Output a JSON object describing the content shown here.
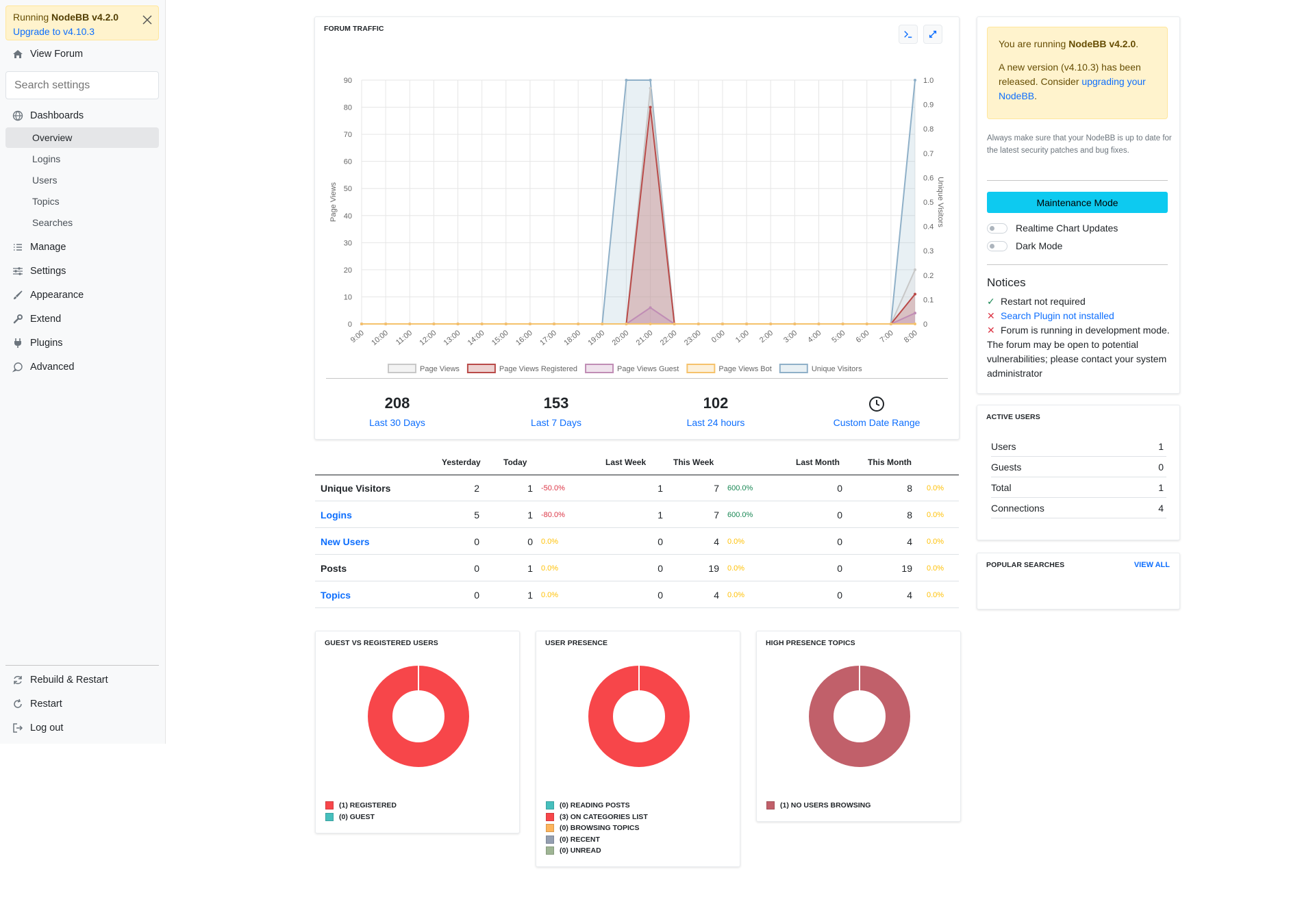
{
  "sidebar": {
    "upgrade_alert": {
      "prefix": "Running ",
      "version": "NodeBB v4.2.0",
      "link": "Upgrade to v4.10.3"
    },
    "view_forum": "View Forum",
    "search_placeholder": "Search settings",
    "dashboards": "Dashboards",
    "dashboard_items": [
      "Overview",
      "Logins",
      "Users",
      "Topics",
      "Searches"
    ],
    "sections": [
      "Manage",
      "Settings",
      "Appearance",
      "Extend",
      "Plugins",
      "Advanced"
    ],
    "footer_items": [
      "Rebuild & Restart",
      "Restart",
      "Log out"
    ]
  },
  "traffic": {
    "title": "FORUM TRAFFIC",
    "stats": [
      {
        "num": "208",
        "label": "Last 30 Days"
      },
      {
        "num": "153",
        "label": "Last 7 Days"
      },
      {
        "num": "102",
        "label": "Last 24 hours"
      },
      {
        "num": "",
        "label": "Custom Date Range"
      }
    ]
  },
  "chart_data": {
    "type": "line",
    "title": "",
    "x": [
      "9:00",
      "10:00",
      "11:00",
      "12:00",
      "13:00",
      "14:00",
      "15:00",
      "16:00",
      "17:00",
      "18:00",
      "19:00",
      "20:00",
      "21:00",
      "22:00",
      "23:00",
      "0:00",
      "1:00",
      "2:00",
      "3:00",
      "4:00",
      "5:00",
      "6:00",
      "7:00",
      "8:00"
    ],
    "ylabel": "Page Views",
    "y2label": "Unique Visitors",
    "ylim": [
      0,
      90
    ],
    "y2lim": [
      0,
      1.0
    ],
    "yticks": [
      0,
      10,
      20,
      30,
      40,
      50,
      60,
      70,
      80,
      90
    ],
    "y2ticks": [
      "0",
      "0.1",
      "0.2",
      "0.3",
      "0.4",
      "0.5",
      "0.6",
      "0.7",
      "0.8",
      "0.9",
      "1.0"
    ],
    "legend_position": "bottom",
    "series": [
      {
        "name": "Page Views",
        "axis": "left",
        "color": "#c8c8c8",
        "values": [
          0,
          0,
          0,
          0,
          0,
          0,
          0,
          0,
          0,
          0,
          0,
          0,
          87,
          0,
          0,
          0,
          0,
          0,
          0,
          0,
          0,
          0,
          0,
          20
        ]
      },
      {
        "name": "Page Views Registered",
        "axis": "left",
        "color": "#b94a48",
        "values": [
          0,
          0,
          0,
          0,
          0,
          0,
          0,
          0,
          0,
          0,
          0,
          0,
          80,
          0,
          0,
          0,
          0,
          0,
          0,
          0,
          0,
          0,
          0,
          11
        ]
      },
      {
        "name": "Page Views Guest",
        "axis": "left",
        "color": "#c08db5",
        "values": [
          0,
          0,
          0,
          0,
          0,
          0,
          0,
          0,
          0,
          0,
          0,
          0,
          6,
          0,
          0,
          0,
          0,
          0,
          0,
          0,
          0,
          0,
          0,
          4
        ]
      },
      {
        "name": "Page Views Bot",
        "axis": "left",
        "color": "#f5c26b",
        "values": [
          0,
          0,
          0,
          0,
          0,
          0,
          0,
          0,
          0,
          0,
          0,
          0,
          0,
          0,
          0,
          0,
          0,
          0,
          0,
          0,
          0,
          0,
          0,
          0
        ]
      },
      {
        "name": "Unique Visitors",
        "axis": "right",
        "color": "#8fb0c8",
        "values": [
          0,
          0,
          0,
          0,
          0,
          0,
          0,
          0,
          0,
          0,
          0,
          1,
          1,
          0,
          0,
          0,
          0,
          0,
          0,
          0,
          0,
          0,
          0,
          1
        ]
      }
    ]
  },
  "stats_table": {
    "headers": [
      "Yesterday",
      "Today",
      "Last Week",
      "This Week",
      "Last Month",
      "This Month"
    ],
    "rows": [
      {
        "name": "Unique Visitors",
        "link": false,
        "yesterday": "2",
        "today": "1",
        "today_pct": "-50.0%",
        "today_cls": "neg",
        "last_week": "1",
        "this_week": "7",
        "week_pct": "600.0%",
        "week_cls": "pos",
        "last_month": "0",
        "this_month": "8",
        "month_pct": "0.0%",
        "month_cls": "zero"
      },
      {
        "name": "Logins",
        "link": true,
        "yesterday": "5",
        "today": "1",
        "today_pct": "-80.0%",
        "today_cls": "neg",
        "last_week": "1",
        "this_week": "7",
        "week_pct": "600.0%",
        "week_cls": "pos",
        "last_month": "0",
        "this_month": "8",
        "month_pct": "0.0%",
        "month_cls": "zero"
      },
      {
        "name": "New Users",
        "link": true,
        "yesterday": "0",
        "today": "0",
        "today_pct": "0.0%",
        "today_cls": "zero",
        "last_week": "0",
        "this_week": "4",
        "week_pct": "0.0%",
        "week_cls": "zero",
        "last_month": "0",
        "this_month": "4",
        "month_pct": "0.0%",
        "month_cls": "zero"
      },
      {
        "name": "Posts",
        "link": false,
        "yesterday": "0",
        "today": "1",
        "today_pct": "0.0%",
        "today_cls": "zero",
        "last_week": "0",
        "this_week": "19",
        "week_pct": "0.0%",
        "week_cls": "zero",
        "last_month": "0",
        "this_month": "19",
        "month_pct": "0.0%",
        "month_cls": "zero"
      },
      {
        "name": "Topics",
        "link": true,
        "yesterday": "0",
        "today": "1",
        "today_pct": "0.0%",
        "today_cls": "zero",
        "last_week": "0",
        "this_week": "4",
        "week_pct": "0.0%",
        "week_cls": "zero",
        "last_month": "0",
        "this_month": "4",
        "month_pct": "0.0%",
        "month_cls": "zero"
      }
    ]
  },
  "donuts": [
    {
      "title": "GUEST VS REGISTERED USERS",
      "legend": [
        {
          "label": "(1) REGISTERED",
          "color": "#f7464a",
          "value": 1
        },
        {
          "label": "(0) GUEST",
          "color": "#46bfbd",
          "value": 0
        }
      ]
    },
    {
      "title": "USER PRESENCE",
      "legend": [
        {
          "label": "(0) READING POSTS",
          "color": "#46bfbd",
          "value": 0
        },
        {
          "label": "(3) ON CATEGORIES LIST",
          "color": "#f7464a",
          "value": 3
        },
        {
          "label": "(0) BROWSING TOPICS",
          "color": "#fdb45c",
          "value": 0
        },
        {
          "label": "(0) RECENT",
          "color": "#949fb1",
          "value": 0
        },
        {
          "label": "(0) UNREAD",
          "color": "#9fb594",
          "value": 0
        }
      ]
    },
    {
      "title": "HIGH PRESENCE TOPICS",
      "legend": [
        {
          "label": "(1) NO USERS BROWSING",
          "color": "#c1606a",
          "value": 1
        }
      ]
    }
  ],
  "right_panel": {
    "warning": {
      "line1_prefix": "You are running ",
      "line1_version": "NodeBB v4.2.0",
      "line1_suffix": ".",
      "line2": "A new version (v4.10.3) has been released. Consider ",
      "line2_link": "upgrading your NodeBB",
      "line2_suffix": "."
    },
    "security_note": "Always make sure that your NodeBB is up to date for the latest security patches and bug fixes.",
    "maintenance_button": "Maintenance Mode",
    "toggles": [
      "Realtime Chart Updates",
      "Dark Mode"
    ],
    "notices_title": "Notices",
    "notices": [
      {
        "mark": "✓",
        "ok": true,
        "text": "Restart not required",
        "link": false
      },
      {
        "mark": "✕",
        "ok": false,
        "text": "Search Plugin not installed",
        "link": true
      },
      {
        "mark": "✕",
        "ok": false,
        "text": "Forum is running in development mode. The forum may be open to potential vulnerabilities; please contact your system administrator",
        "link": false
      }
    ],
    "active_users": {
      "title": "ACTIVE USERS",
      "rows": [
        {
          "label": "Users",
          "value": "1"
        },
        {
          "label": "Guests",
          "value": "0"
        },
        {
          "label": "Total",
          "value": "1"
        },
        {
          "label": "Connections",
          "value": "4"
        }
      ]
    },
    "popular_searches": {
      "title": "POPULAR SEARCHES",
      "view_all": "VIEW ALL"
    }
  },
  "colors": {
    "link": "#0d6efd",
    "warning_bg": "#fff3cd",
    "maintenance": "#0dcaf0"
  }
}
